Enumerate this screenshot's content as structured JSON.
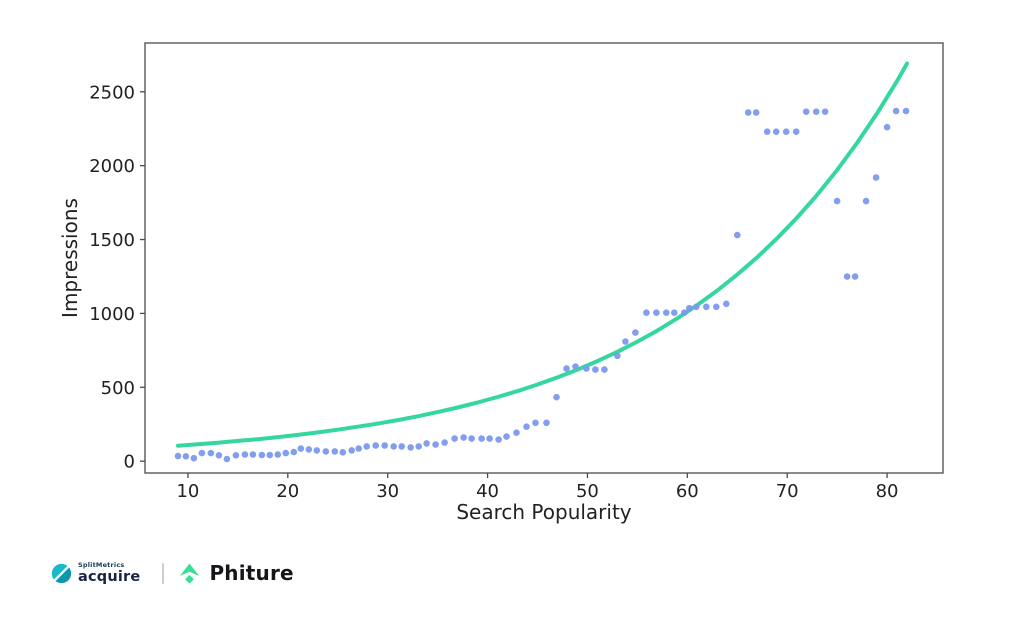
{
  "chart_data": {
    "type": "scatter",
    "title": "",
    "xlabel": "Search Popularity",
    "ylabel": "Impressions",
    "x_ticks": [
      10,
      20,
      30,
      40,
      50,
      60,
      70,
      80
    ],
    "y_ticks": [
      0,
      500,
      1000,
      1500,
      2000,
      2500
    ],
    "xlim": [
      5.7,
      85.6
    ],
    "ylim": [
      -80,
      2830
    ],
    "grid": false,
    "legend": "none",
    "point_color": "#7d99ee",
    "trend_color": "#35d79e",
    "axis_color": "#4a4a4a",
    "text_color": "#222222",
    "points": [
      [
        9,
        35
      ],
      [
        9.8,
        33
      ],
      [
        10.6,
        20
      ],
      [
        11.4,
        55
      ],
      [
        12.3,
        55
      ],
      [
        13.1,
        40
      ],
      [
        13.9,
        15
      ],
      [
        14.8,
        40
      ],
      [
        15.7,
        45
      ],
      [
        16.5,
        45
      ],
      [
        17.4,
        42
      ],
      [
        18.2,
        42
      ],
      [
        19,
        45
      ],
      [
        19.8,
        55
      ],
      [
        20.6,
        62
      ],
      [
        21.3,
        85
      ],
      [
        22.1,
        80
      ],
      [
        22.9,
        73
      ],
      [
        23.8,
        66
      ],
      [
        24.7,
        66
      ],
      [
        25.5,
        60
      ],
      [
        26.4,
        73
      ],
      [
        27.1,
        86
      ],
      [
        27.9,
        100
      ],
      [
        28.8,
        106
      ],
      [
        29.7,
        106
      ],
      [
        30.6,
        100
      ],
      [
        31.4,
        100
      ],
      [
        32.3,
        93
      ],
      [
        33.1,
        100
      ],
      [
        33.9,
        120
      ],
      [
        34.8,
        113
      ],
      [
        35.7,
        126
      ],
      [
        36.7,
        153
      ],
      [
        37.6,
        160
      ],
      [
        38.4,
        153
      ],
      [
        39.4,
        153
      ],
      [
        40.2,
        153
      ],
      [
        41.1,
        146
      ],
      [
        41.9,
        166
      ],
      [
        42.9,
        193
      ],
      [
        43.9,
        233
      ],
      [
        44.8,
        260
      ],
      [
        45.9,
        260
      ],
      [
        46.9,
        433
      ],
      [
        47.9,
        627
      ],
      [
        48.8,
        640
      ],
      [
        49.9,
        627
      ],
      [
        50.8,
        620
      ],
      [
        51.7,
        620
      ],
      [
        53,
        713
      ],
      [
        53.8,
        810
      ],
      [
        54.8,
        870
      ],
      [
        55.9,
        1005
      ],
      [
        56.9,
        1005
      ],
      [
        57.9,
        1005
      ],
      [
        58.7,
        1005
      ],
      [
        59.7,
        1005
      ],
      [
        60.2,
        1035
      ],
      [
        60.9,
        1045
      ],
      [
        61.9,
        1045
      ],
      [
        62.9,
        1045
      ],
      [
        63.9,
        1065
      ],
      [
        65,
        1530
      ],
      [
        66.1,
        2360
      ],
      [
        66.9,
        2360
      ],
      [
        68,
        2230
      ],
      [
        68.9,
        2230
      ],
      [
        69.9,
        2230
      ],
      [
        70.9,
        2230
      ],
      [
        71.9,
        2365
      ],
      [
        72.9,
        2365
      ],
      [
        73.8,
        2365
      ],
      [
        75,
        1760
      ],
      [
        76,
        1250
      ],
      [
        76.8,
        1250
      ],
      [
        77.9,
        1760
      ],
      [
        78.9,
        1920
      ],
      [
        80,
        2260
      ],
      [
        80.9,
        2370
      ],
      [
        81.9,
        2370
      ]
    ],
    "trend": {
      "name": "exponential-fit",
      "points": [
        [
          9,
          105
        ],
        [
          11,
          114
        ],
        [
          13,
          125
        ],
        [
          15,
          137
        ],
        [
          17,
          149
        ],
        [
          19,
          163
        ],
        [
          21,
          178
        ],
        [
          23,
          195
        ],
        [
          25,
          213
        ],
        [
          27,
          233
        ],
        [
          29,
          254
        ],
        [
          31,
          278
        ],
        [
          33,
          304
        ],
        [
          35,
          332
        ],
        [
          37,
          363
        ],
        [
          39,
          397
        ],
        [
          41,
          434
        ],
        [
          43,
          474
        ],
        [
          45,
          519
        ],
        [
          47,
          567
        ],
        [
          49,
          620
        ],
        [
          51,
          677
        ],
        [
          53,
          740
        ],
        [
          55,
          809
        ],
        [
          57,
          884
        ],
        [
          59,
          967
        ],
        [
          61,
          1057
        ],
        [
          63,
          1155
        ],
        [
          65,
          1263
        ],
        [
          67,
          1380
        ],
        [
          69,
          1509
        ],
        [
          71,
          1649
        ],
        [
          73,
          1803
        ],
        [
          75,
          1970
        ],
        [
          77,
          2154
        ],
        [
          79,
          2354
        ],
        [
          81,
          2573
        ],
        [
          82,
          2691
        ]
      ]
    }
  },
  "footer": {
    "splitmetrics": {
      "brand": "SplitMetrics",
      "product": "acquire"
    },
    "phiture": {
      "name": "Phiture"
    },
    "colors": {
      "teal_light": "#17bac8",
      "teal_dark": "#0b97ab",
      "navy": "#1b2246",
      "green": "#36df96",
      "divider": "#c9ced6",
      "logo_text": "#15161a"
    }
  }
}
